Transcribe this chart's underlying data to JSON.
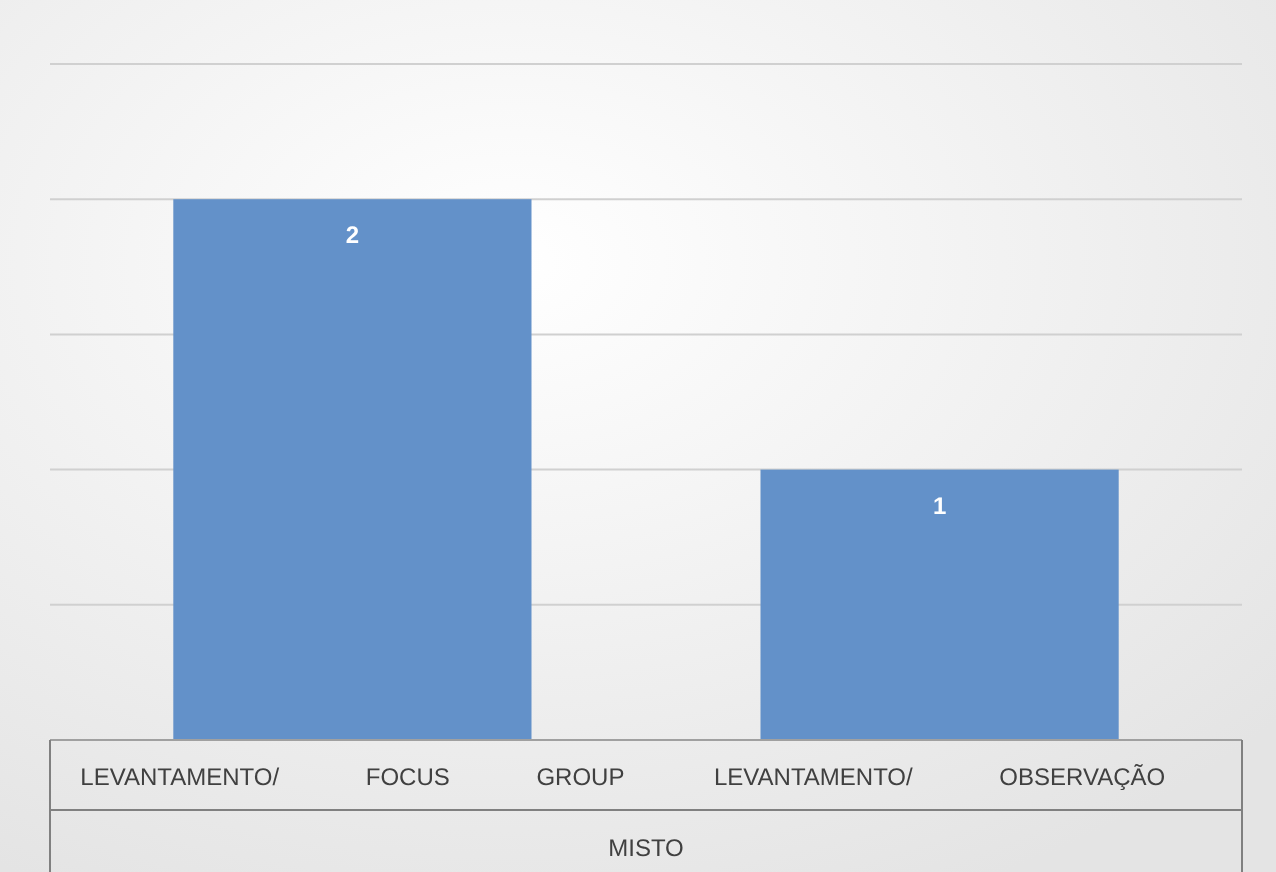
{
  "chart_data": {
    "type": "bar",
    "categories": [
      "LEVANTAMENTO/ FOCUS GROUP",
      "LEVANTAMENTO/ OBSERVAÇÃO"
    ],
    "values": [
      2,
      1
    ],
    "color": "#6391c9",
    "xlabel": "MISTO",
    "ylim": [
      0,
      2.5
    ],
    "yticks": [
      {
        "value": 0,
        "label": null
      },
      {
        "value": 0.5,
        "label": null
      },
      {
        "value": 1,
        "label": null
      },
      {
        "value": 1.5,
        "label": null
      },
      {
        "value": 2,
        "label": null
      },
      {
        "value": 2.5,
        "label": null
      }
    ],
    "tick_labels": "x",
    "grid": "y",
    "data_labels": true
  }
}
